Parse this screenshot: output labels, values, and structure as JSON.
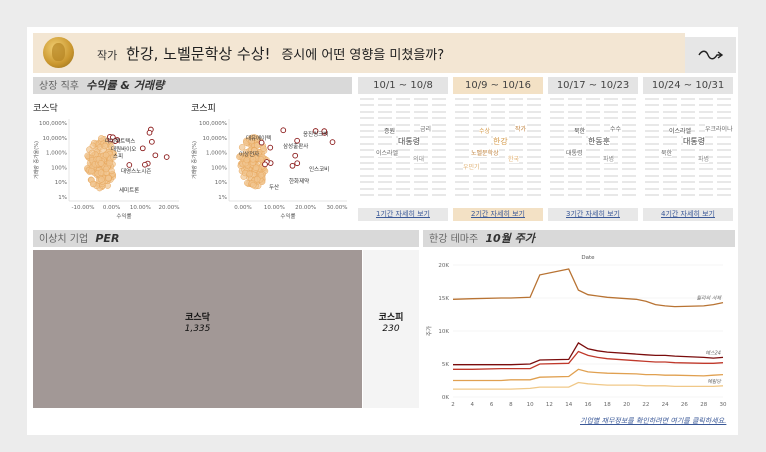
{
  "header": {
    "prefix": "작가",
    "title_main": "한강, 노벨문학상 수상!",
    "title_sub": "증시에 어떤 영향을 미쳤을까?"
  },
  "returns_section": {
    "label": "상장 직후",
    "title": "수익률 & 거래량",
    "kosdaq": {
      "title": "코스닥",
      "xlabel": "수익률",
      "ylabel": "거래량 증가율(%)",
      "yticks": [
        "100,000%",
        "10,000%",
        "1,000%",
        "100%",
        "10%",
        "1%"
      ],
      "xticks": [
        "-10.00%",
        "0.00%",
        "10.00%",
        "20.00%"
      ],
      "labels": [
        "다이렉트텍스",
        "대원바이오",
        "스피",
        "대영스노시즌",
        "세미트론"
      ]
    },
    "kospi": {
      "title": "코스피",
      "xlabel": "수익률",
      "ylabel": "거래량 증가율(%)",
      "yticks": [
        "100,000%",
        "10,000%",
        "1,000%",
        "100%",
        "10%",
        "1%"
      ],
      "xticks": [
        "0.00%",
        "10.00%",
        "20.00%",
        "30.00%"
      ],
      "labels": [
        "대유에이텍",
        "이상전자",
        "삼성출판사",
        "응진씽크빅",
        "인스코비",
        "한화제약",
        "두산"
      ]
    }
  },
  "weeks": [
    {
      "range": "10/1 ~ 10/8",
      "button": "1기간 자세히 보기",
      "words": [
        "대통령",
        "이스라엘",
        "의대",
        "증원",
        "금리"
      ]
    },
    {
      "range": "10/9 ~ 10/16",
      "button": "2기간 자세히 보기",
      "words": [
        "한강",
        "노벨문학상",
        "한국",
        "수상",
        "작가",
        "우민기"
      ]
    },
    {
      "range": "10/17 ~ 10/23",
      "button": "3기간 자세히 보기",
      "words": [
        "한동훈",
        "대통령",
        "파병",
        "북한",
        "수수"
      ]
    },
    {
      "range": "10/24 ~ 10/31",
      "button": "4기간 자세히 보기",
      "words": [
        "대통령",
        "북한",
        "파병",
        "이스라엘",
        "우크라이나"
      ]
    }
  ],
  "per_section": {
    "label": "이상치 기업",
    "title": "PER",
    "kosdaq": {
      "name": "코스닥",
      "value": "1,335"
    },
    "kospi": {
      "name": "코스피",
      "value": "230"
    }
  },
  "theme_section": {
    "label": "한강 테마주",
    "title": "10월 주가",
    "footer": "기업별 재무정보를 확인하려면 여기를 클릭하세요."
  },
  "chart_data": {
    "type": "line",
    "title": "Date",
    "ylabel": "주가",
    "x": [
      2,
      4,
      7,
      8,
      10,
      11,
      14,
      15,
      16,
      17,
      18,
      21,
      22,
      23,
      24,
      25,
      28,
      29,
      30
    ],
    "xticks": [
      2,
      4,
      6,
      8,
      10,
      12,
      14,
      16,
      18,
      20,
      22,
      24,
      26,
      28,
      30
    ],
    "yticks": [
      "0K",
      "5K",
      "10K",
      "15K",
      "20K"
    ],
    "ylim": [
      0,
      20000
    ],
    "series": [
      {
        "name": "윌리의 서재",
        "color": "#b87333",
        "values": [
          14800,
          14900,
          15000,
          15000,
          15100,
          18500,
          19400,
          16200,
          15500,
          15300,
          15100,
          14800,
          14500,
          14000,
          13800,
          13700,
          13800,
          14000,
          14300
        ]
      },
      {
        "name": "예스24",
        "color": "#7a0c0c",
        "values": [
          4900,
          4900,
          4900,
          4900,
          5000,
          5600,
          5700,
          8200,
          7300,
          7000,
          6800,
          6500,
          6400,
          6300,
          6300,
          6200,
          6000,
          5900,
          6000
        ]
      },
      {
        "name": "",
        "color": "#c0392b",
        "values": [
          4200,
          4200,
          4300,
          4300,
          4300,
          5000,
          5100,
          6900,
          6300,
          6000,
          5800,
          5500,
          5400,
          5300,
          5300,
          5200,
          5100,
          5100,
          5200
        ]
      },
      {
        "name": "",
        "color": "#e0a050",
        "values": [
          2500,
          2500,
          2500,
          2600,
          2600,
          3000,
          3100,
          4200,
          3800,
          3700,
          3600,
          3500,
          3400,
          3400,
          3300,
          3300,
          3200,
          3300,
          3400
        ]
      },
      {
        "name": "예림당",
        "color": "#f0c888",
        "values": [
          1200,
          1200,
          1200,
          1200,
          1300,
          1500,
          1500,
          2200,
          2000,
          1900,
          1800,
          1800,
          1700,
          1700,
          1700,
          1600,
          1600,
          1600,
          1700
        ]
      }
    ]
  }
}
